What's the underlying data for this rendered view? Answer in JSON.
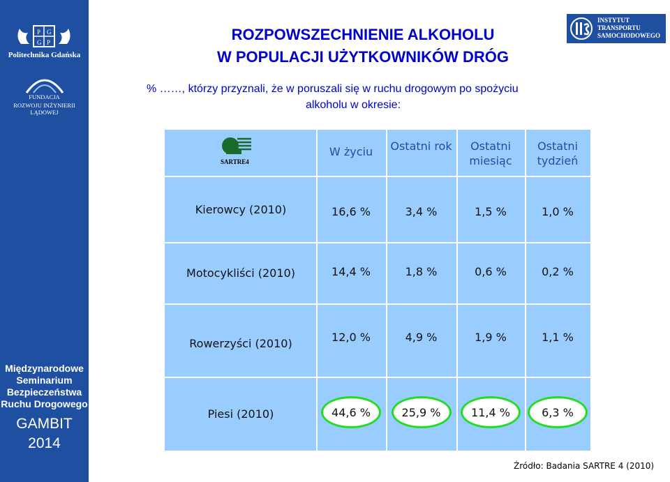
{
  "sidebar": {
    "org1": "Politechnika Gdańska",
    "org2_line1": "FUNDACJA",
    "org2_line2": "ROZWOJU INŻYNIERII LĄDOWEJ",
    "seminar": [
      "Międzynarodowe",
      "Seminarium",
      "Bezpieczeństwa",
      "Ruchu Drogowego"
    ],
    "gambit": "GAMBIT",
    "year": "2014"
  },
  "header": {
    "title_line1": "ROZPOWSZECHNIENIE ALKOHOLU",
    "title_line2": "W POPULACJI UŻYTKOWNIKÓW DRÓG",
    "institute": [
      "INSTYTUT",
      "TRANSPORTU",
      "SAMOCHODOWEGO"
    ]
  },
  "subtitle": {
    "line1": "%   ……, którzy  przyznali,  że  w  poruszali się w ruchu drogowym po spożyciu",
    "line2": "alkoholu w okresie:"
  },
  "table": {
    "logo_text": "SARTRE4",
    "columns": [
      "W  życiu",
      "Ostatni rok",
      "Ostatni miesiąc",
      "Ostatni tydzień"
    ],
    "rows": [
      {
        "label": "Kierowcy  (2010)",
        "values": [
          "16,6 %",
          "3,4 %",
          "1,5 %",
          "1,0 %"
        ]
      },
      {
        "label": "Motocykliści  (2010)",
        "values": [
          "14,4 %",
          "1,8 %",
          "0,6 %",
          "0,2 %"
        ]
      },
      {
        "label": "Rowerzyści  (2010)",
        "values": [
          "12,0 %",
          "4,9 %",
          "1,9 %",
          "1,1 %"
        ]
      },
      {
        "label": "Piesi  (2010)",
        "values": [
          "44,6 %",
          "25,9 %",
          "11,4 %",
          "6,3 %"
        ]
      }
    ]
  },
  "source": "Źródło:  Badania  SARTRE 4  (2010)",
  "colors": {
    "sidebar": "#1f4fa0",
    "table": "#99ccff",
    "title": "#0000cc",
    "highlight": "#22dd22"
  }
}
